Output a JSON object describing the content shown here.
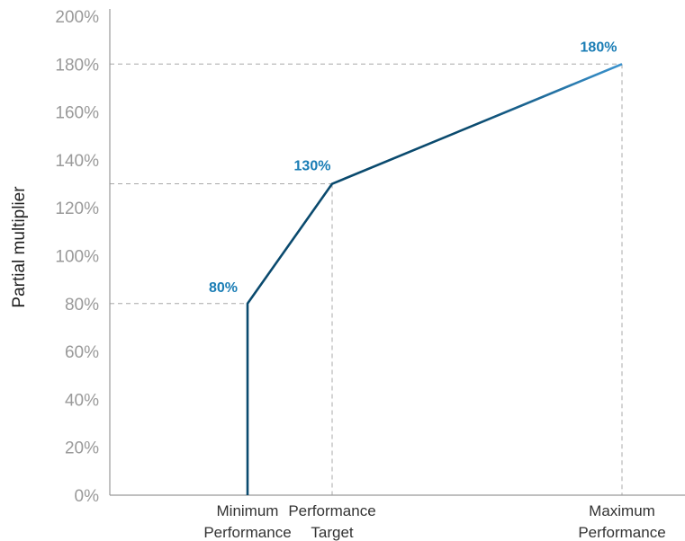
{
  "chart_data": {
    "type": "line",
    "ylabel": "Partial multiplier",
    "xlabel": "",
    "ylim": [
      0,
      200
    ],
    "y_ticks": [
      0,
      20,
      40,
      60,
      80,
      100,
      120,
      140,
      160,
      180,
      200
    ],
    "y_tick_labels": [
      "0%",
      "20%",
      "40%",
      "60%",
      "80%",
      "100%",
      "120%",
      "140%",
      "160%",
      "180%",
      "200%"
    ],
    "categories": [
      [
        "Minimum",
        "Performance"
      ],
      [
        "Performance",
        "Target"
      ],
      [
        "Maximum",
        "Performance"
      ]
    ],
    "series": [
      {
        "points": [
          {
            "x": "Minimum Performance",
            "y": 0
          },
          {
            "x": "Minimum Performance",
            "y": 80
          },
          {
            "x": "Performance Target",
            "y": 130
          },
          {
            "x": "Maximum Performance",
            "y": 180
          }
        ]
      }
    ],
    "data_labels": [
      "80%",
      "130%",
      "180%"
    ],
    "line_color_start": "#0a4a6e",
    "line_color_end": "#3a93cf",
    "label_color": "#1a7db5",
    "guide_color": "#a8a8a8",
    "grid": false
  }
}
